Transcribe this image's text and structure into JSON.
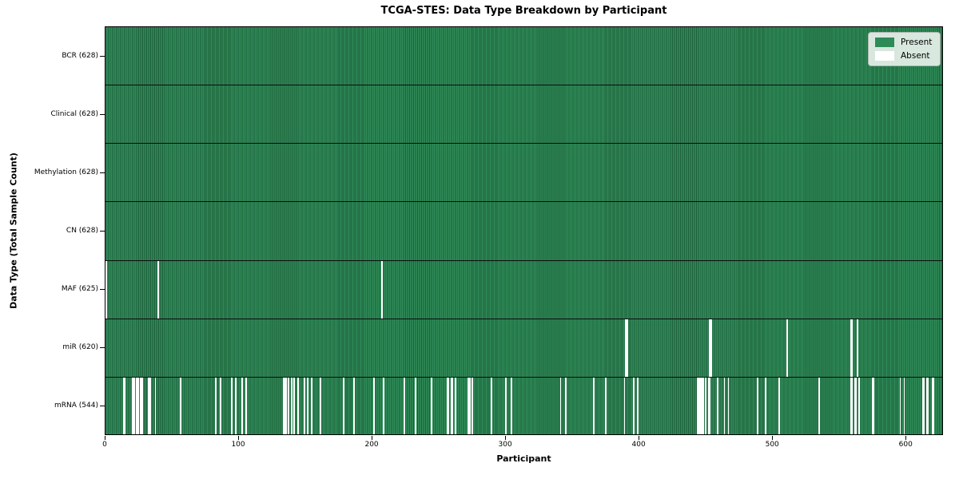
{
  "title": "TCGA-STES: Data Type Breakdown by Participant",
  "xlabel": "Participant",
  "ylabel": "Data Type (Total Sample Count)",
  "legend": {
    "present_label": "Present",
    "absent_label": "Absent",
    "position": "upper right"
  },
  "colors": {
    "present": "#2e8b57",
    "present_edge": "#1f5e3b",
    "absent": "#ffffff"
  },
  "chart_data": {
    "type": "heatmap",
    "title": "TCGA-STES: Data Type Breakdown by Participant",
    "xlabel": "Participant",
    "ylabel": "Data Type (Total Sample Count)",
    "x_ticks": [
      0,
      100,
      200,
      300,
      400,
      500,
      600
    ],
    "x_range": [
      0,
      628
    ],
    "total_participants": 628,
    "legend_entries": [
      "Present",
      "Absent"
    ],
    "legend_position": "upper right",
    "grid": false,
    "rows": [
      {
        "label": "BCR (628)",
        "data_type": "BCR",
        "present_count": 628,
        "absent_count": 0,
        "absent_participants": []
      },
      {
        "label": "Clinical (628)",
        "data_type": "Clinical",
        "present_count": 628,
        "absent_count": 0,
        "absent_participants": []
      },
      {
        "label": "Methylation (628)",
        "data_type": "Methylation",
        "present_count": 628,
        "absent_count": 0,
        "absent_participants": []
      },
      {
        "label": "CN (628)",
        "data_type": "CN",
        "present_count": 628,
        "absent_count": 0,
        "absent_participants": []
      },
      {
        "label": "MAF (625)",
        "data_type": "MAF",
        "present_count": 625,
        "absent_count": 3,
        "absent_participants": [
          0,
          39,
          207
        ]
      },
      {
        "label": "miR (620)",
        "data_type": "miR",
        "present_count": 620,
        "absent_count": 8,
        "absent_participants": [
          390,
          391,
          453,
          454,
          511,
          559,
          560,
          564
        ]
      },
      {
        "label": "mRNA (544)",
        "data_type": "mRNA",
        "present_count": 544,
        "absent_count": 84,
        "absent_participants": [
          13,
          14,
          20,
          21,
          23,
          24,
          26,
          27,
          32,
          33,
          37,
          56,
          82,
          86,
          94,
          97,
          102,
          105,
          133,
          134,
          135,
          137,
          139,
          141,
          144,
          149,
          151,
          154,
          161,
          178,
          186,
          201,
          208,
          224,
          232,
          244,
          256,
          257,
          259,
          260,
          262,
          272,
          273,
          275,
          289,
          300,
          304,
          341,
          345,
          366,
          375,
          389,
          396,
          399,
          444,
          445,
          446,
          447,
          448,
          450,
          452,
          453,
          459,
          464,
          467,
          489,
          495,
          505,
          535,
          559,
          560,
          562,
          563,
          565,
          575,
          576,
          596,
          599,
          613,
          614,
          616,
          617,
          620,
          621
        ]
      }
    ]
  }
}
